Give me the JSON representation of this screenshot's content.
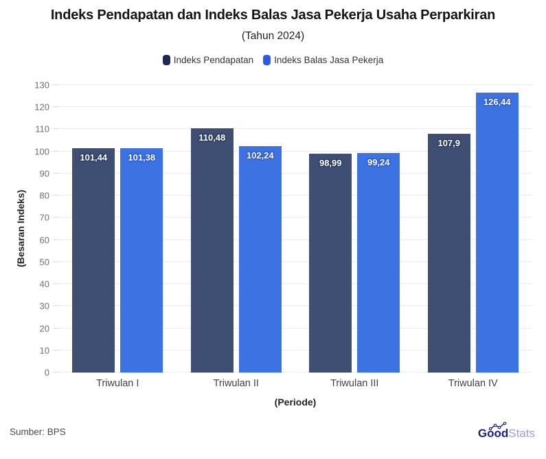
{
  "header": {
    "title": "Indeks Pendapatan dan Indeks Balas Jasa Pekerja Usaha Perparkiran",
    "subtitle": "(Tahun 2024)"
  },
  "chart_data": {
    "type": "bar",
    "title": "Indeks Pendapatan dan Indeks Balas Jasa Pekerja Usaha Perparkiran",
    "subtitle": "(Tahun 2024)",
    "categories": [
      "Triwulan I",
      "Triwulan II",
      "Triwulan III",
      "Triwulan IV"
    ],
    "series": [
      {
        "name": "Indeks Pendapatan",
        "values": [
          101.44,
          110.48,
          98.99,
          107.9
        ],
        "value_labels": [
          "101,44",
          "110,48",
          "98,99",
          "107,9"
        ],
        "bar_color": "#3f4f74",
        "legend_color": "#1c2a52",
        "label_outline_color": "#25345c"
      },
      {
        "name": "Indeks Balas Jasa Pekerja",
        "values": [
          101.38,
          102.24,
          99.24,
          126.44
        ],
        "value_labels": [
          "101,38",
          "102,24",
          "99,24",
          "126,44"
        ],
        "bar_color": "#3d72e3",
        "legend_color": "#2b5de4",
        "label_outline_color": "#2858c8"
      }
    ],
    "xlabel": "(Periode)",
    "ylabel": "(Besaran Indeks)",
    "ylim": [
      0,
      130
    ],
    "yticks": [
      0,
      10,
      20,
      30,
      40,
      50,
      60,
      70,
      80,
      90,
      100,
      110,
      120,
      130
    ],
    "grid": true,
    "gridline_color": "#ececec",
    "legend_position": "top"
  },
  "footer": {
    "source": "Sumber: BPS",
    "brand": {
      "bold": "Good",
      "light": "Stats",
      "color_bold": "#1a1f7c",
      "color_light": "#9a9ed4"
    }
  }
}
